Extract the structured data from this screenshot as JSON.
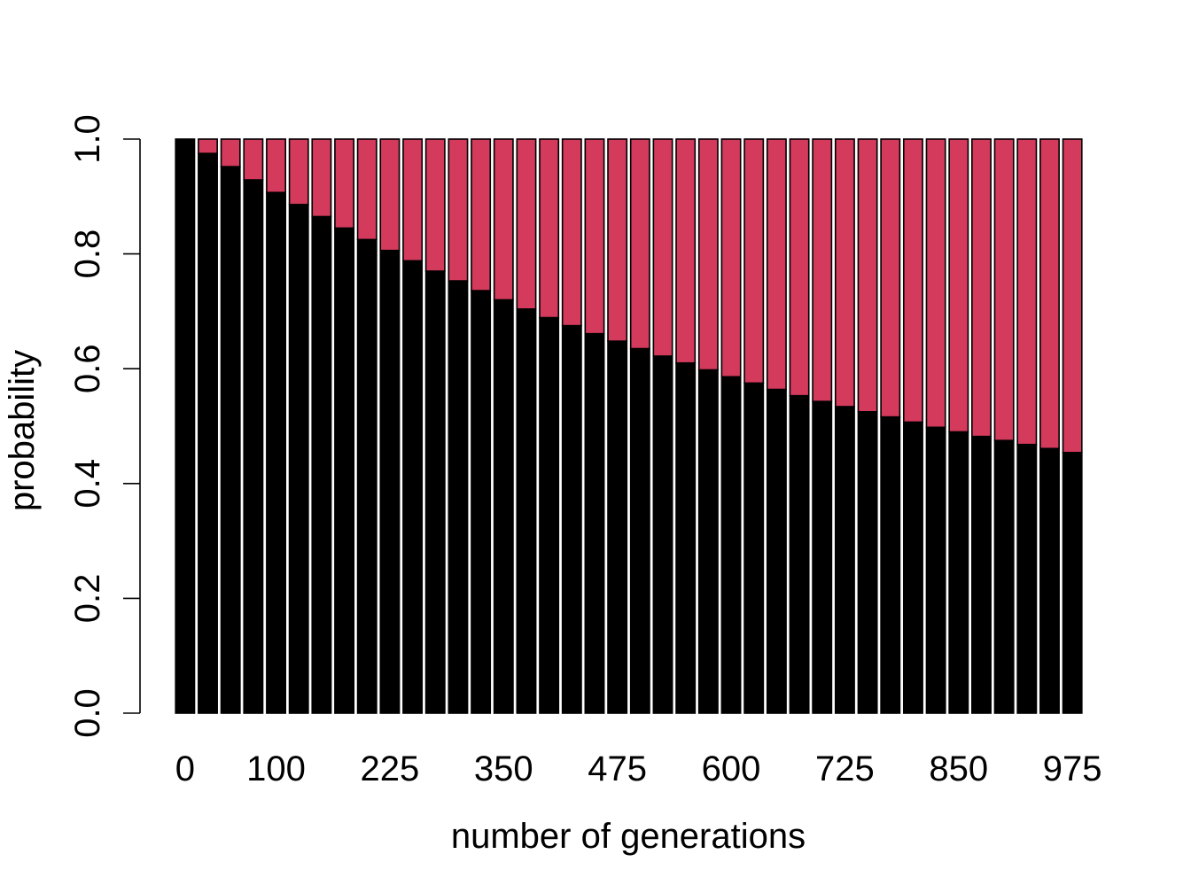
{
  "chart_data": {
    "type": "bar",
    "stacked": true,
    "title": "",
    "xlabel": "number of generations",
    "ylabel": "probability",
    "ylim": [
      0,
      1
    ],
    "y_ticks": [
      "0.0",
      "0.2",
      "0.4",
      "0.6",
      "0.8",
      "1.0"
    ],
    "x_tick_labels": [
      "0",
      "100",
      "225",
      "350",
      "475",
      "600",
      "725",
      "850",
      "975"
    ],
    "x_tick_label_bar_index": [
      0,
      4,
      9,
      14,
      19,
      24,
      29,
      34,
      39
    ],
    "categories": [
      "0",
      "25",
      "50",
      "75",
      "100",
      "125",
      "150",
      "175",
      "200",
      "225",
      "250",
      "275",
      "300",
      "325",
      "350",
      "375",
      "400",
      "425",
      "450",
      "475",
      "500",
      "525",
      "550",
      "575",
      "600",
      "625",
      "650",
      "675",
      "700",
      "725",
      "750",
      "775",
      "800",
      "825",
      "850",
      "875",
      "900",
      "925",
      "950",
      "975"
    ],
    "series": [
      {
        "color": "#000000",
        "values": [
          1.0,
          0.975,
          0.952,
          0.929,
          0.907,
          0.886,
          0.865,
          0.845,
          0.825,
          0.806,
          0.788,
          0.77,
          0.753,
          0.736,
          0.72,
          0.704,
          0.689,
          0.675,
          0.661,
          0.648,
          0.635,
          0.622,
          0.61,
          0.598,
          0.586,
          0.575,
          0.564,
          0.553,
          0.543,
          0.534,
          0.525,
          0.516,
          0.507,
          0.498,
          0.49,
          0.482,
          0.475,
          0.468,
          0.461,
          0.454
        ]
      },
      {
        "color": "#d33a5c",
        "values": [
          0.0,
          0.025,
          0.048,
          0.071,
          0.093,
          0.114,
          0.135,
          0.155,
          0.175,
          0.194,
          0.212,
          0.23,
          0.247,
          0.264,
          0.28,
          0.296,
          0.311,
          0.325,
          0.339,
          0.352,
          0.365,
          0.378,
          0.39,
          0.402,
          0.414,
          0.425,
          0.436,
          0.447,
          0.457,
          0.466,
          0.475,
          0.484,
          0.493,
          0.502,
          0.51,
          0.518,
          0.525,
          0.532,
          0.539,
          0.546
        ]
      }
    ]
  }
}
